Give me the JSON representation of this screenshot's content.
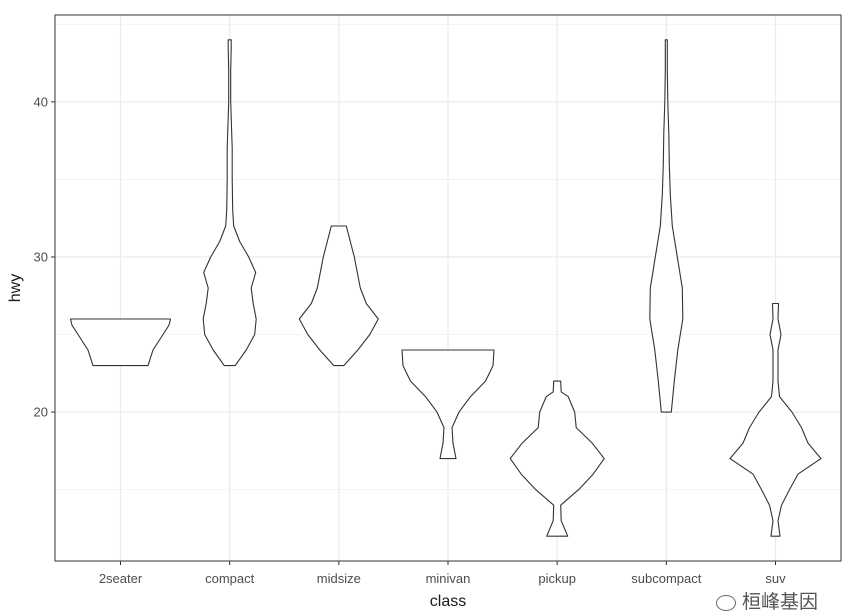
{
  "chart_data": {
    "type": "violin",
    "title": "",
    "xlabel": "class",
    "ylabel": "hwy",
    "ylim": [
      10.4,
      45.6
    ],
    "yticks": [
      20,
      30,
      40
    ],
    "categories": [
      "2seater",
      "compact",
      "midsize",
      "minivan",
      "pickup",
      "subcompact",
      "suv"
    ],
    "grid": true,
    "violins": [
      {
        "category": "2seater",
        "profile": [
          [
            23,
            0.55
          ],
          [
            24,
            0.65
          ],
          [
            25,
            0.85
          ],
          [
            25.6,
            0.97
          ],
          [
            26,
            1.0
          ]
        ]
      },
      {
        "category": "compact",
        "profile": [
          [
            23,
            0.11
          ],
          [
            24,
            0.33
          ],
          [
            25,
            0.5
          ],
          [
            26,
            0.53
          ],
          [
            27,
            0.47
          ],
          [
            28,
            0.43
          ],
          [
            29,
            0.52
          ],
          [
            30,
            0.38
          ],
          [
            31,
            0.2
          ],
          [
            32,
            0.08
          ],
          [
            33,
            0.06
          ],
          [
            35,
            0.05
          ],
          [
            37,
            0.05
          ],
          [
            38,
            0.04
          ],
          [
            40,
            0.02
          ],
          [
            42,
            0.02
          ],
          [
            43.5,
            0.03
          ],
          [
            44,
            0.03
          ]
        ]
      },
      {
        "category": "midsize",
        "profile": [
          [
            23,
            0.1
          ],
          [
            24,
            0.38
          ],
          [
            25,
            0.62
          ],
          [
            26,
            0.79
          ],
          [
            27,
            0.55
          ],
          [
            28,
            0.43
          ],
          [
            29,
            0.37
          ],
          [
            30,
            0.31
          ],
          [
            31,
            0.23
          ],
          [
            32,
            0.15
          ]
        ]
      },
      {
        "category": "minivan",
        "profile": [
          [
            17,
            0.16
          ],
          [
            18,
            0.1
          ],
          [
            19,
            0.08
          ],
          [
            20,
            0.22
          ],
          [
            21,
            0.45
          ],
          [
            22,
            0.75
          ],
          [
            23,
            0.9
          ],
          [
            24,
            0.92
          ]
        ]
      },
      {
        "category": "pickup",
        "profile": [
          [
            12,
            0.21
          ],
          [
            13,
            0.08
          ],
          [
            14,
            0.07
          ],
          [
            15,
            0.43
          ],
          [
            16,
            0.72
          ],
          [
            17,
            0.94
          ],
          [
            18,
            0.7
          ],
          [
            19,
            0.38
          ],
          [
            20,
            0.35
          ],
          [
            21,
            0.22
          ],
          [
            21.3,
            0.08
          ],
          [
            22,
            0.07
          ]
        ]
      },
      {
        "category": "subcompact",
        "profile": [
          [
            20,
            0.1
          ],
          [
            22,
            0.16
          ],
          [
            24,
            0.23
          ],
          [
            26,
            0.33
          ],
          [
            28,
            0.32
          ],
          [
            30,
            0.22
          ],
          [
            32,
            0.12
          ],
          [
            34,
            0.08
          ],
          [
            36,
            0.06
          ],
          [
            38,
            0.05
          ],
          [
            40,
            0.03
          ],
          [
            42,
            0.02
          ],
          [
            44,
            0.02
          ]
        ]
      },
      {
        "category": "suv",
        "profile": [
          [
            12,
            0.09
          ],
          [
            13,
            0.05
          ],
          [
            14,
            0.12
          ],
          [
            15,
            0.28
          ],
          [
            16,
            0.45
          ],
          [
            17,
            0.91
          ],
          [
            18,
            0.65
          ],
          [
            19,
            0.52
          ],
          [
            20,
            0.33
          ],
          [
            21,
            0.08
          ],
          [
            22,
            0.05
          ],
          [
            24,
            0.05
          ],
          [
            25,
            0.11
          ],
          [
            26,
            0.05
          ],
          [
            27,
            0.06
          ]
        ]
      }
    ]
  },
  "watermark": {
    "text": "桓峰基因",
    "icon": "wechat-icon"
  }
}
